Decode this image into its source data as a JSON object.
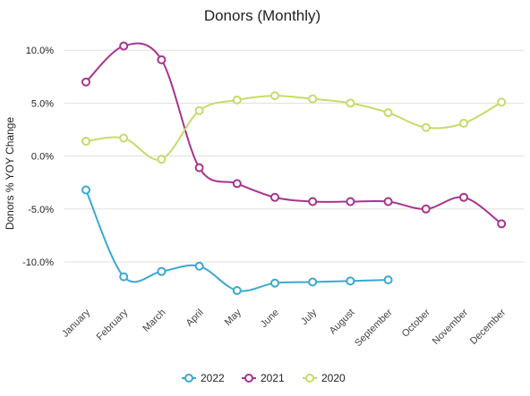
{
  "chart_data": {
    "type": "line",
    "title": "Donors (Monthly)",
    "xlabel": "",
    "ylabel": "Donors % YOY Change",
    "categories": [
      "January",
      "February",
      "March",
      "April",
      "May",
      "June",
      "July",
      "August",
      "September",
      "October",
      "November",
      "December"
    ],
    "ylim": [
      -13.8,
      11.2
    ],
    "yticks": [
      {
        "value": 10,
        "label": "10.0%"
      },
      {
        "value": 5,
        "label": "5.0%"
      },
      {
        "value": 0,
        "label": "0.0%"
      },
      {
        "value": -5,
        "label": "-5.0%"
      },
      {
        "value": -10,
        "label": "-10.0%"
      }
    ],
    "grid": true,
    "legend_position": "bottom",
    "series": [
      {
        "name": "2022",
        "color": "#3aa9cf",
        "values": [
          -3.2,
          -11.4,
          -10.9,
          -10.4,
          -12.7,
          -12.0,
          -11.9,
          -11.8,
          -11.7,
          null,
          null,
          null
        ]
      },
      {
        "name": "2021",
        "color": "#a8338f",
        "values": [
          7.0,
          10.4,
          9.1,
          -1.1,
          -2.6,
          -3.9,
          -4.3,
          -4.3,
          -4.3,
          -5.0,
          -3.9,
          -6.4
        ]
      },
      {
        "name": "2020",
        "color": "#c4dc6a",
        "values": [
          1.4,
          1.7,
          -0.3,
          4.3,
          5.3,
          5.7,
          5.4,
          5.0,
          4.1,
          2.7,
          3.1,
          5.1
        ]
      }
    ]
  }
}
